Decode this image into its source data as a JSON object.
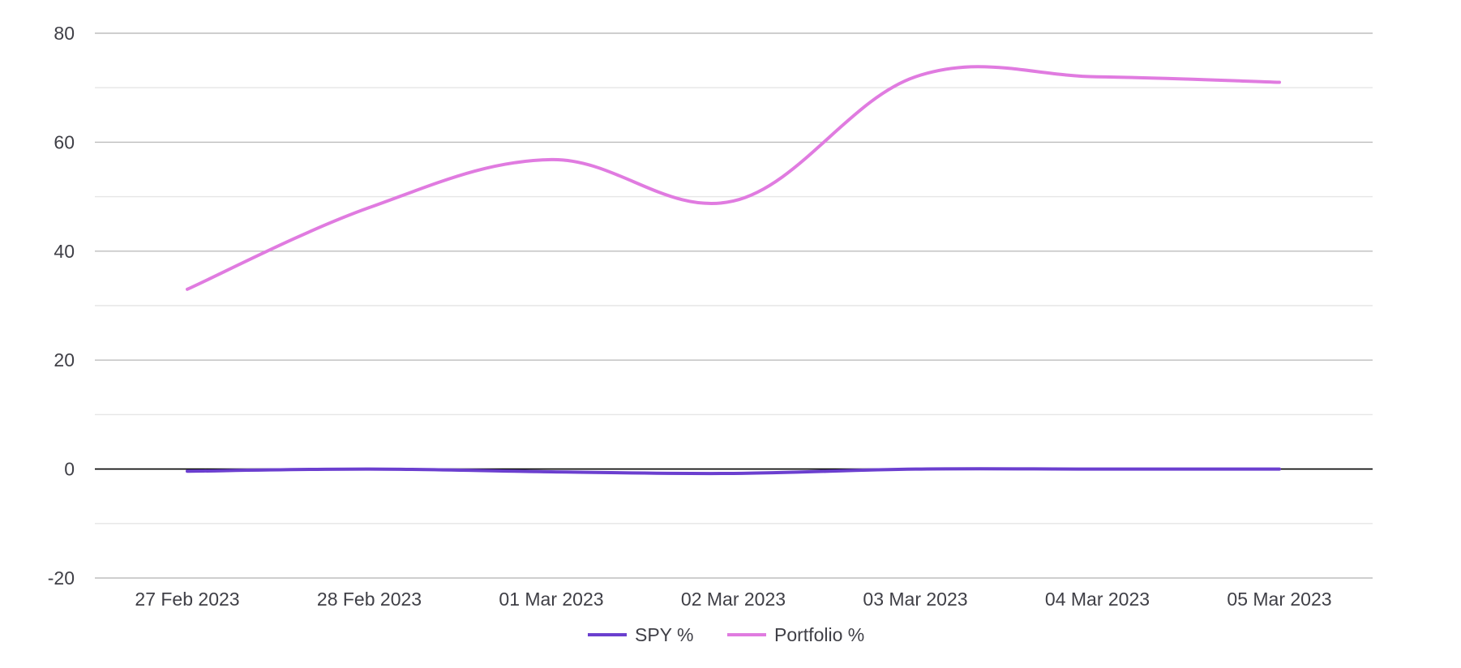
{
  "chart_data": {
    "type": "line",
    "title": "",
    "xlabel": "",
    "ylabel": "",
    "categories": [
      "27 Feb 2023",
      "28 Feb 2023",
      "01 Mar 2023",
      "02 Mar 2023",
      "03 Mar 2023",
      "04 Mar 2023",
      "05 Mar 2023"
    ],
    "ylim": [
      -20,
      80
    ],
    "yticks": [
      "80",
      "60",
      "40",
      "20",
      "0",
      "-20"
    ],
    "grid": true,
    "legend_position": "bottom-center",
    "series": [
      {
        "name": "SPY %",
        "color": "#6b3fcf",
        "values": [
          -0.4,
          0.0,
          -0.5,
          -0.8,
          0.0,
          0.0,
          0.0
        ]
      },
      {
        "name": "Portfolio %",
        "color": "#e07be0",
        "values": [
          33,
          48,
          56.8,
          49.2,
          72,
          72,
          71
        ]
      }
    ]
  }
}
